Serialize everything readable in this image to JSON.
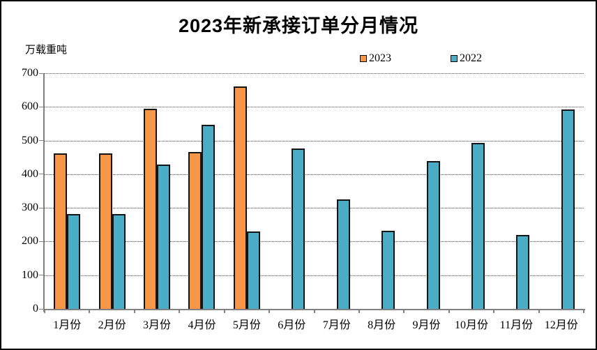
{
  "chart": {
    "title": "2023年新承接订单分月情况",
    "unit_label": "万载重吨"
  },
  "chart_data": {
    "type": "bar",
    "title": "2023年新承接订单分月情况",
    "xlabel": "",
    "ylabel": "万载重吨",
    "categories": [
      "1月份",
      "2月份",
      "3月份",
      "4月份",
      "5月份",
      "6月份",
      "7月份",
      "8月份",
      "9月份",
      "10月份",
      "11月份",
      "12月份"
    ],
    "series": [
      {
        "name": "2023",
        "color": "#F79646",
        "values": [
          461,
          462,
          595,
          467,
          660,
          null,
          null,
          null,
          null,
          null,
          null,
          null
        ]
      },
      {
        "name": "2022",
        "color": "#4BACC6",
        "values": [
          281,
          282,
          428,
          546,
          230,
          476,
          325,
          231,
          440,
          493,
          220,
          592
        ]
      }
    ],
    "ylim": [
      0,
      700
    ],
    "ytick_step": 100,
    "yticks": [
      0,
      100,
      200,
      300,
      400,
      500,
      600,
      700
    ],
    "grid": "horizontal-dotted",
    "legend_position": "top-center",
    "axis_color": "#808080",
    "bar_border_color": "#141414"
  }
}
